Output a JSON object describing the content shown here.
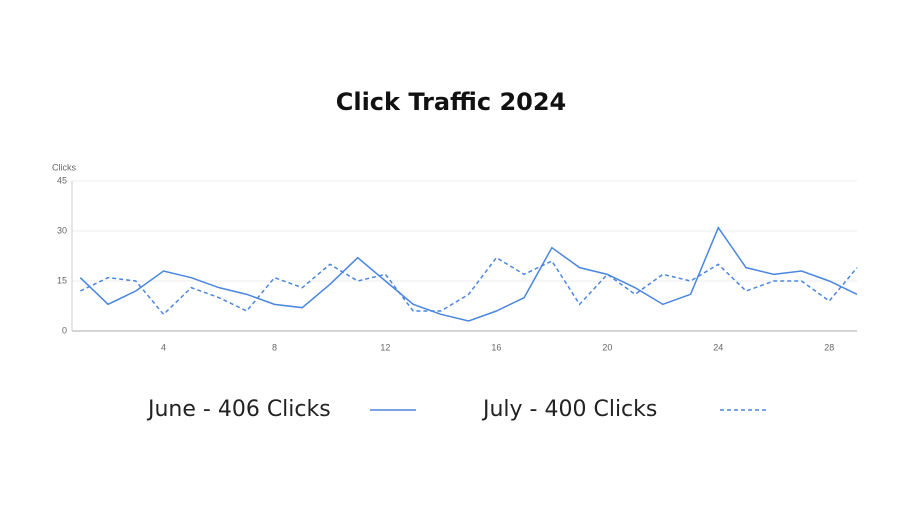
{
  "chart_data": {
    "type": "line",
    "title": "Click Traffic 2024",
    "y_label": "Clicks",
    "x": [
      1,
      2,
      3,
      4,
      5,
      6,
      7,
      8,
      9,
      10,
      11,
      12,
      13,
      14,
      15,
      16,
      17,
      18,
      19,
      20,
      21,
      22,
      23,
      24,
      25,
      26,
      27,
      28,
      29
    ],
    "series": [
      {
        "name": "June - 406 Clicks",
        "color": "#4a86e0",
        "line_style": "solid",
        "values": [
          16,
          8,
          12,
          18,
          16,
          13,
          11,
          8,
          7,
          14,
          22,
          15,
          8,
          5,
          3,
          6,
          10,
          25,
          19,
          17,
          13,
          8,
          11,
          31,
          19,
          17,
          18,
          15,
          11
        ]
      },
      {
        "name": "July - 400 Clicks",
        "color": "#4a86e0",
        "line_style": "dashed",
        "values": [
          12,
          16,
          15,
          5,
          13,
          10,
          6,
          16,
          13,
          20,
          15,
          17,
          6,
          6,
          11,
          22,
          17,
          21,
          8,
          17,
          11,
          17,
          15,
          20,
          12,
          15,
          15,
          9,
          19
        ]
      }
    ],
    "xlim": [
      0.7,
      29
    ],
    "xticks": [
      4,
      8,
      12,
      16,
      20,
      24,
      28
    ],
    "ylim": [
      0,
      45
    ],
    "yticks": [
      0,
      15,
      30,
      45
    ],
    "grid": true
  }
}
